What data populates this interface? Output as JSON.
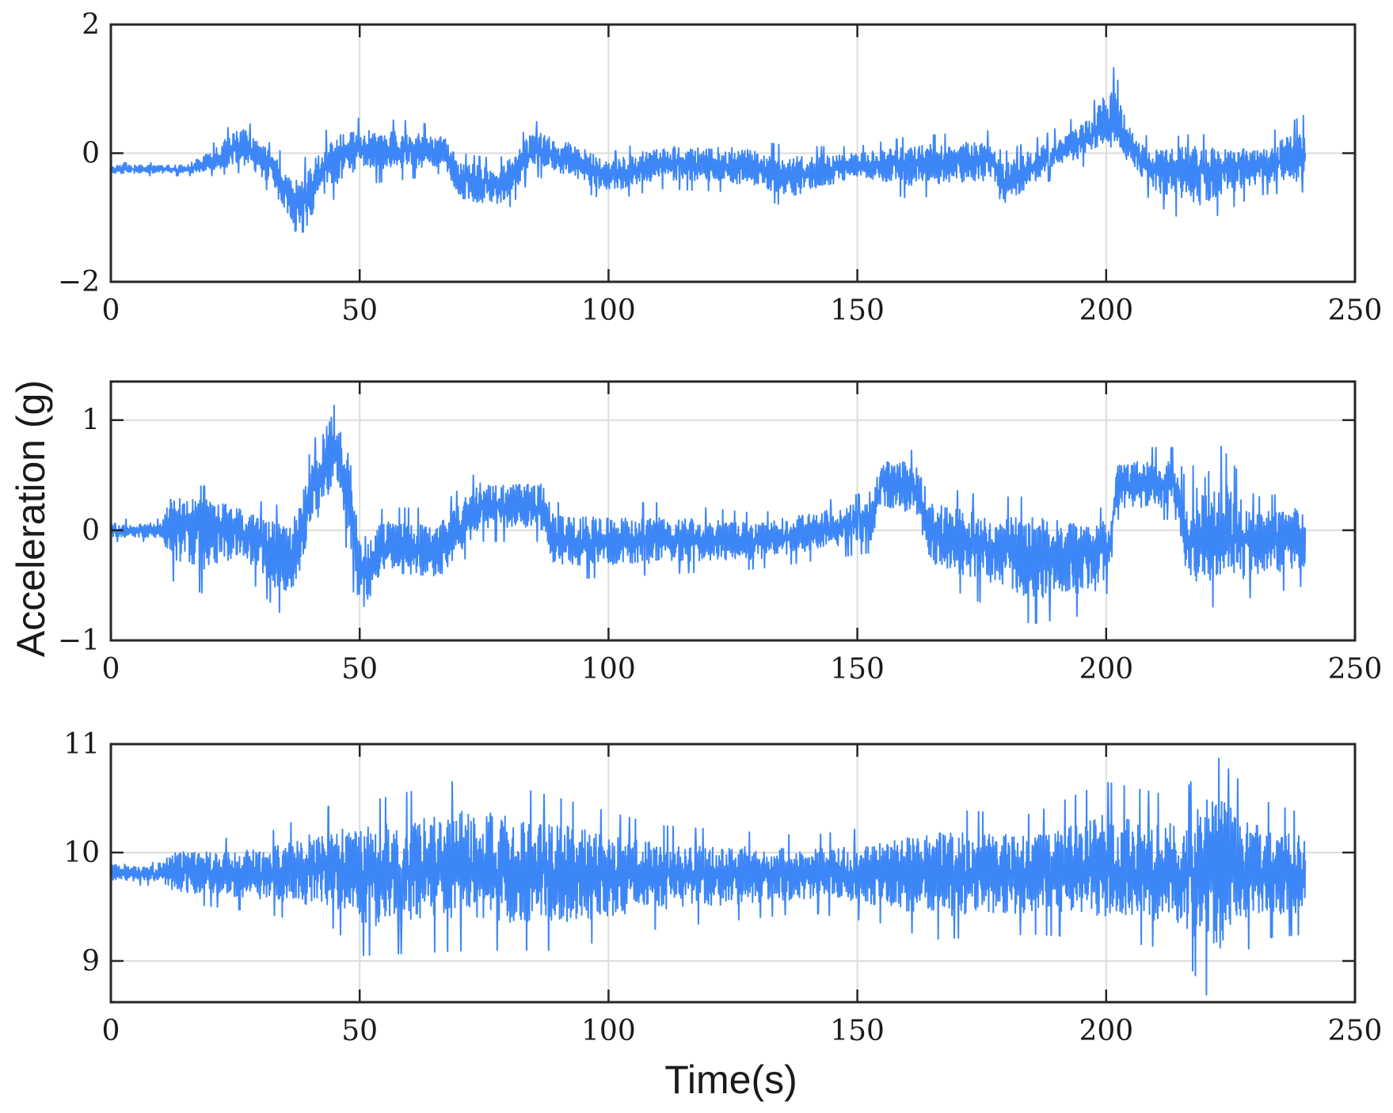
{
  "figure": {
    "ylabel": "Acceleration (g)",
    "xlabel": "Time(s)",
    "colors": {
      "signal": "#3d86f7",
      "axis": "#262626",
      "grid": "#dcdcdc",
      "background": "#ffffff"
    }
  },
  "chart_data": [
    {
      "type": "line",
      "title": "",
      "xlim": [
        0,
        250
      ],
      "ylim": [
        -2,
        2
      ],
      "x_ticks": [
        "0",
        "50",
        "100",
        "150",
        "200",
        "250"
      ],
      "y_ticks": [
        "−2",
        "0",
        "2"
      ],
      "grid": true,
      "series": [
        {
          "x_range": [
            0,
            240
          ],
          "envelope": [
            {
              "t": 0,
              "lo": -0.35,
              "hi": -0.15,
              "mean": -0.25
            },
            {
              "t": 15,
              "lo": -0.35,
              "hi": -0.15,
              "mean": -0.25
            },
            {
              "t": 20,
              "lo": -0.35,
              "hi": 0.1,
              "mean": -0.15
            },
            {
              "t": 26,
              "lo": -0.3,
              "hi": 0.6,
              "mean": 0.1
            },
            {
              "t": 32,
              "lo": -0.6,
              "hi": 0.15,
              "mean": -0.2
            },
            {
              "t": 38,
              "lo": -1.65,
              "hi": -0.2,
              "mean": -0.85
            },
            {
              "t": 42,
              "lo": -0.9,
              "hi": 0.3,
              "mean": -0.3
            },
            {
              "t": 48,
              "lo": -0.5,
              "hi": 0.55,
              "mean": 0.05
            },
            {
              "t": 60,
              "lo": -0.4,
              "hi": 0.5,
              "mean": 0.05
            },
            {
              "t": 67,
              "lo": -0.3,
              "hi": 0.4,
              "mean": 0.0
            },
            {
              "t": 70,
              "lo": -0.9,
              "hi": 0.0,
              "mean": -0.4
            },
            {
              "t": 78,
              "lo": -1.05,
              "hi": -0.1,
              "mean": -0.5
            },
            {
              "t": 85,
              "lo": -0.35,
              "hi": 0.5,
              "mean": 0.05
            },
            {
              "t": 92,
              "lo": -0.5,
              "hi": 0.35,
              "mean": -0.1
            },
            {
              "t": 100,
              "lo": -0.75,
              "hi": 0.0,
              "mean": -0.35
            },
            {
              "t": 110,
              "lo": -0.55,
              "hi": 0.25,
              "mean": -0.15
            },
            {
              "t": 125,
              "lo": -0.6,
              "hi": 0.25,
              "mean": -0.2
            },
            {
              "t": 137,
              "lo": -0.85,
              "hi": 0.1,
              "mean": -0.35
            },
            {
              "t": 150,
              "lo": -0.45,
              "hi": 0.1,
              "mean": -0.2
            },
            {
              "t": 160,
              "lo": -0.7,
              "hi": 0.25,
              "mean": -0.15
            },
            {
              "t": 177,
              "lo": -0.6,
              "hi": 0.35,
              "mean": -0.1
            },
            {
              "t": 179,
              "lo": -1.0,
              "hi": 0.0,
              "mean": -0.5
            },
            {
              "t": 188,
              "lo": -0.45,
              "hi": 0.3,
              "mean": -0.1
            },
            {
              "t": 197,
              "lo": -0.15,
              "hi": 0.7,
              "mean": 0.25
            },
            {
              "t": 201,
              "lo": -0.1,
              "hi": 1.45,
              "mean": 0.45
            },
            {
              "t": 205,
              "lo": -0.3,
              "hi": 0.5,
              "mean": 0.1
            },
            {
              "t": 209,
              "lo": -0.75,
              "hi": 0.2,
              "mean": -0.25
            },
            {
              "t": 218,
              "lo": -1.15,
              "hi": 0.3,
              "mean": -0.25
            },
            {
              "t": 230,
              "lo": -0.65,
              "hi": 0.2,
              "mean": -0.2
            },
            {
              "t": 240,
              "lo": -0.6,
              "hi": 0.6,
              "mean": -0.1
            }
          ]
        }
      ]
    },
    {
      "type": "line",
      "title": "",
      "xlim": [
        0,
        250
      ],
      "ylim": [
        -1,
        1.35
      ],
      "x_ticks": [
        "0",
        "50",
        "100",
        "150",
        "200",
        "250"
      ],
      "y_ticks": [
        "−1",
        "0",
        "1"
      ],
      "grid": true,
      "series": [
        {
          "x_range": [
            0,
            240
          ],
          "envelope": [
            {
              "t": 0,
              "lo": -0.1,
              "hi": 0.1,
              "mean": 0.0
            },
            {
              "t": 10,
              "lo": -0.1,
              "hi": 0.1,
              "mean": 0.0
            },
            {
              "t": 12,
              "lo": -0.45,
              "hi": 0.4,
              "mean": 0.1
            },
            {
              "t": 20,
              "lo": -0.6,
              "hi": 0.4,
              "mean": 0.05
            },
            {
              "t": 26,
              "lo": -0.35,
              "hi": 0.3,
              "mean": 0.0
            },
            {
              "t": 36,
              "lo": -0.85,
              "hi": 0.2,
              "mean": -0.3
            },
            {
              "t": 40,
              "lo": -0.3,
              "hi": 0.7,
              "mean": 0.3
            },
            {
              "t": 45,
              "lo": 0.3,
              "hi": 1.35,
              "mean": 0.8
            },
            {
              "t": 48,
              "lo": -0.3,
              "hi": 1.0,
              "mean": 0.3
            },
            {
              "t": 50,
              "lo": -1.0,
              "hi": 0.1,
              "mean": -0.4
            },
            {
              "t": 55,
              "lo": -0.5,
              "hi": 0.2,
              "mean": -0.15
            },
            {
              "t": 66,
              "lo": -0.55,
              "hi": 0.2,
              "mean": -0.2
            },
            {
              "t": 74,
              "lo": -0.1,
              "hi": 0.55,
              "mean": 0.2
            },
            {
              "t": 87,
              "lo": -0.1,
              "hi": 0.55,
              "mean": 0.2
            },
            {
              "t": 89,
              "lo": -0.45,
              "hi": 0.25,
              "mean": -0.1
            },
            {
              "t": 110,
              "lo": -0.4,
              "hi": 0.25,
              "mean": -0.1
            },
            {
              "t": 130,
              "lo": -0.35,
              "hi": 0.15,
              "mean": -0.1
            },
            {
              "t": 153,
              "lo": -0.2,
              "hi": 0.35,
              "mean": 0.1
            },
            {
              "t": 155,
              "lo": 0.1,
              "hi": 0.85,
              "mean": 0.45
            },
            {
              "t": 162,
              "lo": 0.0,
              "hi": 0.7,
              "mean": 0.35
            },
            {
              "t": 165,
              "lo": -0.45,
              "hi": 0.4,
              "mean": -0.05
            },
            {
              "t": 177,
              "lo": -0.7,
              "hi": 0.3,
              "mean": -0.15
            },
            {
              "t": 185,
              "lo": -0.85,
              "hi": 0.3,
              "mean": -0.2
            },
            {
              "t": 198,
              "lo": -0.75,
              "hi": 0.2,
              "mean": -0.2
            },
            {
              "t": 201,
              "lo": -0.5,
              "hi": 0.2,
              "mean": -0.1
            },
            {
              "t": 202,
              "lo": 0.1,
              "hi": 0.75,
              "mean": 0.4
            },
            {
              "t": 214,
              "lo": 0.1,
              "hi": 0.75,
              "mean": 0.4
            },
            {
              "t": 216,
              "lo": -0.65,
              "hi": 0.45,
              "mean": -0.1
            },
            {
              "t": 221,
              "lo": -0.7,
              "hi": 0.9,
              "mean": -0.05
            },
            {
              "t": 230,
              "lo": -0.6,
              "hi": 0.3,
              "mean": -0.1
            },
            {
              "t": 240,
              "lo": -0.5,
              "hi": 0.35,
              "mean": -0.05
            }
          ]
        }
      ]
    },
    {
      "type": "line",
      "title": "",
      "xlim": [
        0,
        250
      ],
      "ylim": [
        8.62,
        11
      ],
      "x_ticks": [
        "0",
        "50",
        "100",
        "150",
        "200",
        "250"
      ],
      "y_ticks": [
        "9",
        "10",
        "11"
      ],
      "grid": true,
      "series": [
        {
          "x_range": [
            0,
            240
          ],
          "envelope": [
            {
              "t": 0,
              "lo": 9.7,
              "hi": 9.95,
              "mean": 9.82
            },
            {
              "t": 10,
              "lo": 9.7,
              "hi": 9.9,
              "mean": 9.8
            },
            {
              "t": 12,
              "lo": 9.55,
              "hi": 10.1,
              "mean": 9.82
            },
            {
              "t": 30,
              "lo": 9.45,
              "hi": 10.15,
              "mean": 9.8
            },
            {
              "t": 45,
              "lo": 9.3,
              "hi": 10.45,
              "mean": 9.85
            },
            {
              "t": 50,
              "lo": 9.05,
              "hi": 10.45,
              "mean": 9.8
            },
            {
              "t": 73,
              "lo": 9.1,
              "hi": 10.7,
              "mean": 9.85
            },
            {
              "t": 90,
              "lo": 9.1,
              "hi": 10.5,
              "mean": 9.8
            },
            {
              "t": 110,
              "lo": 9.3,
              "hi": 10.25,
              "mean": 9.8
            },
            {
              "t": 140,
              "lo": 9.45,
              "hi": 10.15,
              "mean": 9.8
            },
            {
              "t": 155,
              "lo": 9.35,
              "hi": 10.25,
              "mean": 9.8
            },
            {
              "t": 165,
              "lo": 9.2,
              "hi": 10.4,
              "mean": 9.8
            },
            {
              "t": 185,
              "lo": 9.25,
              "hi": 10.35,
              "mean": 9.8
            },
            {
              "t": 200,
              "lo": 9.2,
              "hi": 10.65,
              "mean": 9.8
            },
            {
              "t": 215,
              "lo": 9.1,
              "hi": 10.5,
              "mean": 9.8
            },
            {
              "t": 221,
              "lo": 8.62,
              "hi": 10.95,
              "mean": 9.8
            },
            {
              "t": 230,
              "lo": 9.2,
              "hi": 10.5,
              "mean": 9.8
            },
            {
              "t": 240,
              "lo": 9.25,
              "hi": 10.35,
              "mean": 9.8
            }
          ]
        }
      ]
    }
  ]
}
